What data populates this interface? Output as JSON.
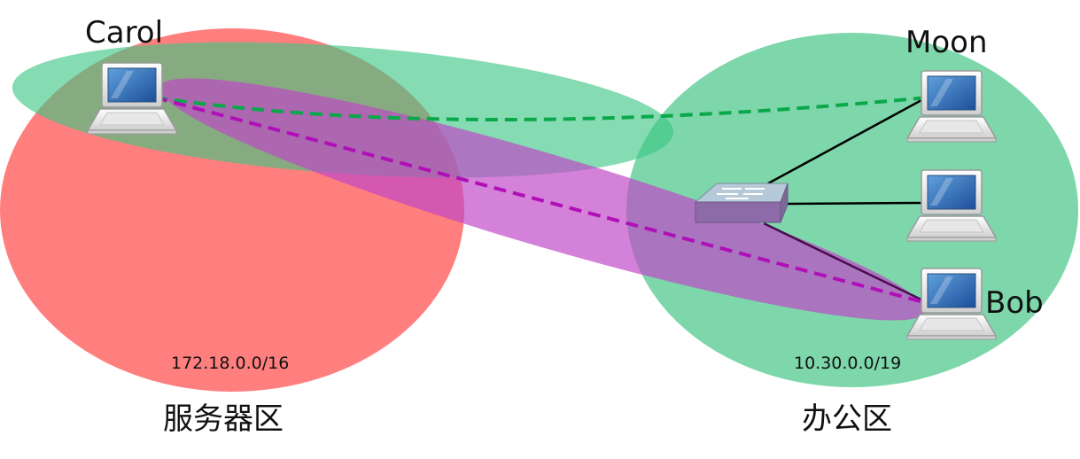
{
  "diagram": {
    "type": "network-topology",
    "zones": [
      {
        "id": "server",
        "name": "服务器区",
        "subnet": "172.18.0.0/16",
        "color": "#ff6e6e"
      },
      {
        "id": "office",
        "name": "办公区",
        "subnet": "10.30.0.0/19",
        "color": "#6dd3a0"
      }
    ],
    "hosts": [
      {
        "id": "carol",
        "label": "Carol",
        "zone": "server"
      },
      {
        "id": "moon",
        "label": "Moon",
        "zone": "office"
      },
      {
        "id": "host-middle",
        "label": "",
        "zone": "office"
      },
      {
        "id": "bob",
        "label": "Bob",
        "zone": "office"
      }
    ],
    "switch": {
      "id": "switch",
      "zone": "office"
    },
    "links": [
      {
        "from": "switch",
        "to": "moon",
        "style": "solid",
        "color": "#000000"
      },
      {
        "from": "switch",
        "to": "host-middle",
        "style": "solid",
        "color": "#000000"
      },
      {
        "from": "switch",
        "to": "bob",
        "style": "solid",
        "color": "#000000"
      }
    ],
    "tunnels": [
      {
        "from": "carol",
        "to": "moon",
        "style": "dashed",
        "color": "#0aa84a"
      },
      {
        "from": "carol",
        "to": "bob",
        "style": "dashed",
        "color": "#b00fb8"
      }
    ]
  }
}
